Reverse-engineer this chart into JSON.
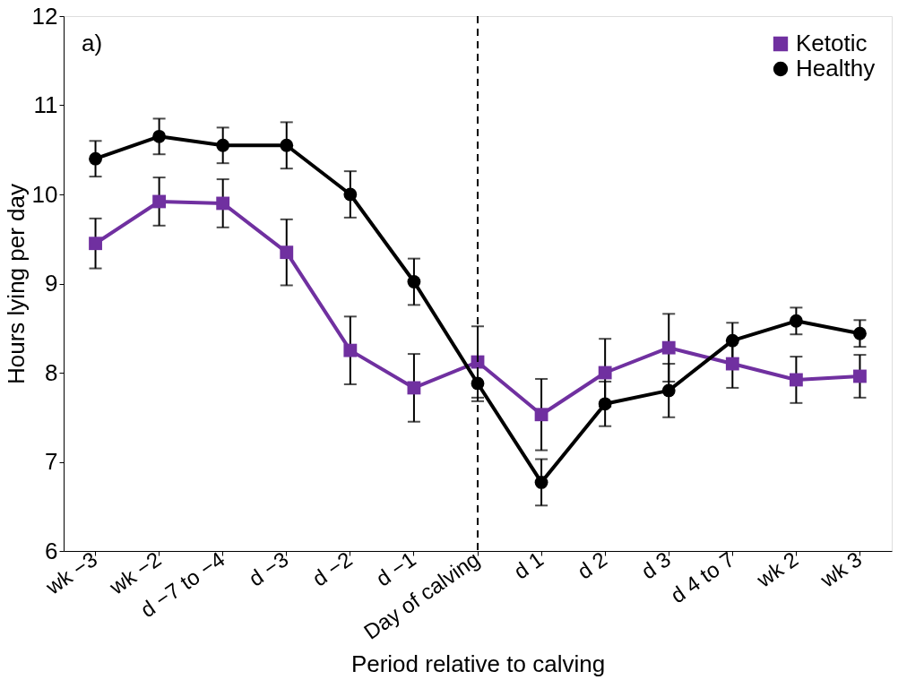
{
  "chart_data": {
    "type": "line",
    "xlabel": "Period relative to calving",
    "ylabel": "Hours lying per day",
    "categories": [
      "wk −3",
      "wk −2",
      "d −7 to −4",
      "d −3",
      "d −2",
      "d −1",
      "Day of calving",
      "d 1",
      "d 2",
      "d 3",
      "d 4 to 7",
      "wk 2",
      "wk 3"
    ],
    "series": [
      {
        "name": "Ketotic",
        "color": "#7030a0",
        "marker": "square",
        "values": [
          9.45,
          9.92,
          9.9,
          9.35,
          8.25,
          7.83,
          8.12,
          7.53,
          8.0,
          8.28,
          8.1,
          7.92,
          7.96
        ],
        "errors": [
          0.28,
          0.27,
          0.27,
          0.37,
          0.38,
          0.38,
          0.4,
          0.4,
          0.38,
          0.38,
          0.27,
          0.26,
          0.24
        ]
      },
      {
        "name": "Healthy",
        "color": "#000000",
        "marker": "circle",
        "values": [
          10.4,
          10.65,
          10.55,
          10.55,
          10.0,
          9.02,
          7.88,
          6.77,
          7.65,
          7.8,
          8.36,
          8.58,
          8.44
        ],
        "errors": [
          0.2,
          0.2,
          0.2,
          0.26,
          0.26,
          0.26,
          0.2,
          0.26,
          0.25,
          0.3,
          0.2,
          0.15,
          0.15
        ]
      }
    ],
    "ylim": [
      6,
      12
    ],
    "yticks": [
      6,
      7,
      8,
      9,
      10,
      11,
      12
    ],
    "ref_lines": [
      {
        "axis": "x",
        "value": "Day of calving",
        "line_style": "dashed",
        "color": "#000000"
      }
    ],
    "annotations": [
      "a)"
    ],
    "legend": "top right",
    "grid": false,
    "line_style": "solid"
  }
}
